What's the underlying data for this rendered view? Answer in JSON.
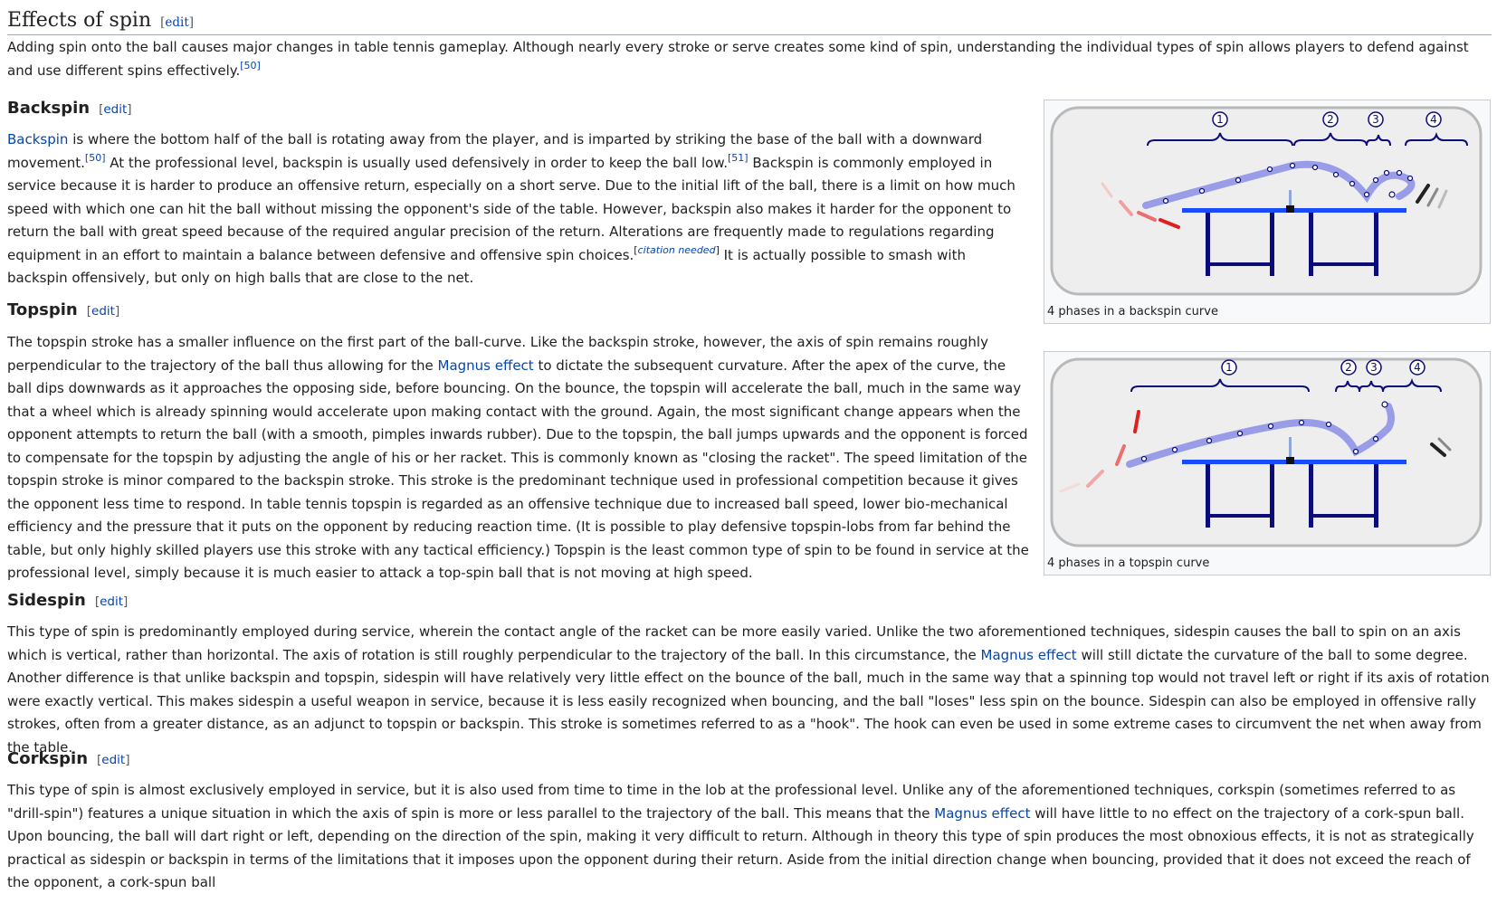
{
  "edit_label": "edit",
  "section": {
    "title": "Effects of spin",
    "intro": "Adding spin onto the ball causes major changes in table tennis gameplay. Although nearly every stroke or serve creates some kind of spin, understanding the individual types of spin allows players to defend against and use different spins effectively.",
    "intro_ref": "[50]"
  },
  "backspin": {
    "title": "Backspin",
    "link": "Backspin",
    "t1": " is where the bottom half of the ball is rotating away from the player, and is imparted by striking the base of the ball with a downward movement.",
    "ref1": "[50]",
    "t2": " At the professional level, backspin is usually used defensively in order to keep the ball low.",
    "ref2": "[51]",
    "t3": " Backspin is commonly employed in service because it is harder to produce an offensive return, especially on a short serve. Due to the initial lift of the ball, there is a limit on how much speed with which one can hit the ball without missing the opponent's side of the table. However, backspin also makes it harder for the opponent to return the ball with great speed because of the required angular precision of the return. Alterations are frequently made to regulations regarding equipment in an effort to maintain a balance between defensive and offensive spin choices.",
    "ref3": "citation needed",
    "t4": " It is actually possible to smash with backspin offensively, but only on high balls that are close to the net."
  },
  "topspin": {
    "title": "Topspin",
    "t1": "The topspin stroke has a smaller influence on the first part of the ball-curve. Like the backspin stroke, however, the axis of spin remains roughly perpendicular to the trajectory of the ball thus allowing for the ",
    "link": "Magnus effect",
    "t2": " to dictate the subsequent curvature. After the apex of the curve, the ball dips downwards as it approaches the opposing side, before bouncing. On the bounce, the topspin will accelerate the ball, much in the same way that a wheel which is already spinning would accelerate upon making contact with the ground. Again, the most significant change appears when the opponent attempts to return the ball (with a smooth, pimples inwards rubber). Due to the topspin, the ball jumps upwards and the opponent is forced to compensate for the topspin by adjusting the angle of his or her racket. This is commonly known as \"closing the racket\". The speed limitation of the topspin stroke is minor compared to the backspin stroke. This stroke is the predominant technique used in professional competition because it gives the opponent less time to respond. In table tennis topspin is regarded as an offensive technique due to increased ball speed, lower bio-mechanical efficiency and the pressure that it puts on the opponent by reducing reaction time. (It is possible to play defensive topspin-lobs from far behind the table, but only highly skilled players use this stroke with any tactical efficiency.) Topspin is the least common type of spin to be found in service at the professional level, simply because it is much easier to attack a top-spin ball that is not moving at high speed."
  },
  "sidespin": {
    "title": "Sidespin",
    "t1": "This type of spin is predominantly employed during service, wherein the contact angle of the racket can be more easily varied. Unlike the two aforementioned techniques, sidespin causes the ball to spin on an axis which is vertical, rather than horizontal. The axis of rotation is still roughly perpendicular to the trajectory of the ball. In this circumstance, the ",
    "link": "Magnus effect",
    "t2": " will still dictate the curvature of the ball to some degree. Another difference is that unlike backspin and topspin, sidespin will have relatively very little effect on the bounce of the ball, much in the same way that a spinning top would not travel left or right if its axis of rotation were exactly vertical. This makes sidespin a useful weapon in service, because it is less easily recognized when bouncing, and the ball \"loses\" less spin on the bounce. Sidespin can also be employed in offensive rally strokes, often from a greater distance, as an adjunct to topspin or backspin. This stroke is sometimes referred to as a \"hook\". The hook can even be used in some extreme cases to circumvent the net when away from the table."
  },
  "corkspin": {
    "title": "Corkspin",
    "t1": "This type of spin is almost exclusively employed in service, but it is also used from time to time in the lob at the professional level. Unlike any of the aforementioned techniques, corkspin (sometimes referred to as \"drill-spin\") features a unique situation in which the axis of spin is more or less parallel to the trajectory of the ball. This means that the ",
    "link": "Magnus effect",
    "t2": " will have little to no effect on the trajectory of a cork-spun ball. Upon bouncing, the ball will dart right or left, depending on the direction of the spin, making it very difficult to return. Although in theory this type of spin produces the most obnoxious effects, it is not as strategically practical as sidespin or backspin in terms of the limitations that it imposes upon the opponent during their return. Aside from the initial direction change when bouncing, provided that it does not exceed the reach of the opponent, a cork-spun ball"
  },
  "figures": [
    {
      "caption": "4 phases in a backspin curve",
      "phases": [
        "1",
        "2",
        "3",
        "4"
      ]
    },
    {
      "caption": "4 phases in a topspin curve",
      "phases": [
        "1",
        "2",
        "3",
        "4"
      ]
    }
  ],
  "colors": {
    "link": "#0645ad",
    "table": "#1a4bff",
    "legs": "#0b0b7a",
    "curve": "#8f93e6",
    "racket_red": "#e02020"
  }
}
